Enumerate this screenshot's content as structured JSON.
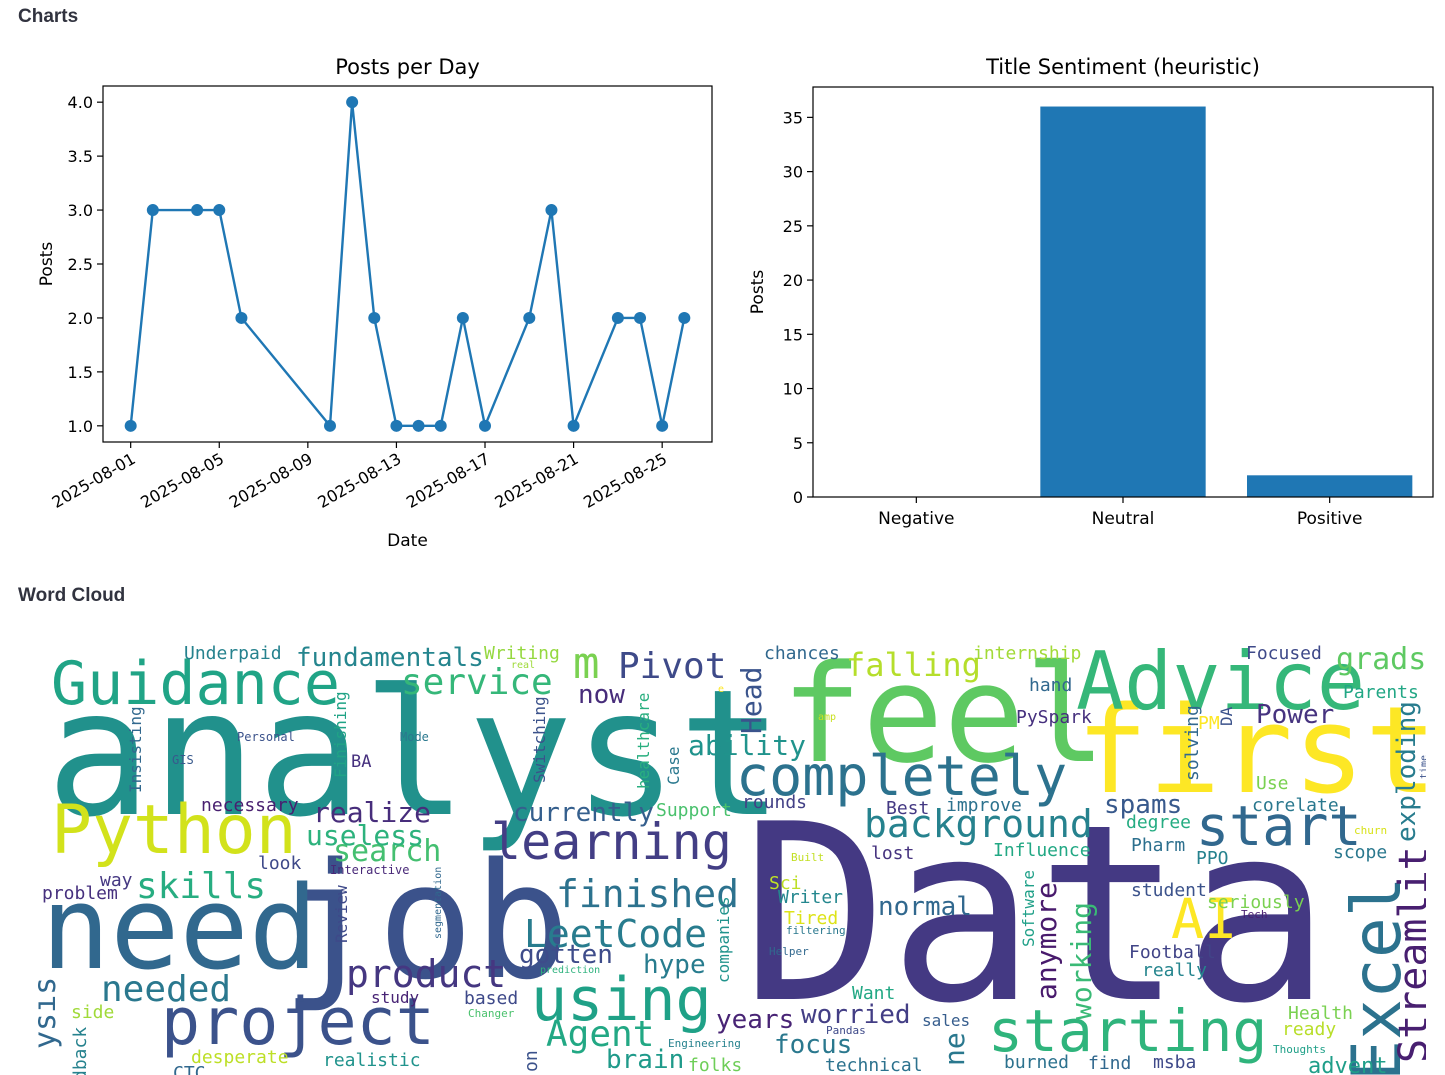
{
  "sections": {
    "charts_title": "Charts",
    "wordcloud_title": "Word Cloud"
  },
  "chart_data": [
    {
      "type": "line",
      "title": "Posts per Day",
      "xlabel": "Date",
      "ylabel": "Posts",
      "x": [
        "2025-08-01",
        "2025-08-02",
        "2025-08-04",
        "2025-08-05",
        "2025-08-06",
        "2025-08-10",
        "2025-08-11",
        "2025-08-12",
        "2025-08-13",
        "2025-08-14",
        "2025-08-15",
        "2025-08-16",
        "2025-08-17",
        "2025-08-19",
        "2025-08-20",
        "2025-08-21",
        "2025-08-23",
        "2025-08-24",
        "2025-08-25",
        "2025-08-26"
      ],
      "values": [
        1,
        3,
        3,
        3,
        2,
        1,
        4,
        2,
        1,
        1,
        1,
        2,
        1,
        2,
        3,
        1,
        2,
        2,
        1,
        2
      ],
      "xticks": [
        "2025-08-01",
        "2025-08-05",
        "2025-08-09",
        "2025-08-13",
        "2025-08-17",
        "2025-08-21",
        "2025-08-25"
      ],
      "yticks": [
        "1.0",
        "1.5",
        "2.0",
        "2.5",
        "3.0",
        "3.5",
        "4.0"
      ],
      "ylim": [
        0.85,
        4.15
      ],
      "color": "#1f77b4",
      "grid": false
    },
    {
      "type": "bar",
      "title": "Title Sentiment (heuristic)",
      "xlabel": "",
      "ylabel": "Posts",
      "categories": [
        "Negative",
        "Neutral",
        "Positive"
      ],
      "values": [
        0,
        36,
        2
      ],
      "yticks": [
        "0",
        "5",
        "10",
        "15",
        "20",
        "25",
        "30",
        "35"
      ],
      "ylim": [
        0,
        37.8
      ],
      "color": "#1f77b4",
      "grid": false
    }
  ],
  "wordcloud": {
    "words": [
      {
        "text": "Data",
        "color": "#443983"
      },
      {
        "text": "analyst",
        "color": "#21918c"
      },
      {
        "text": "job",
        "color": "#3b528b"
      },
      {
        "text": "feel",
        "color": "#5ec962"
      },
      {
        "text": "first",
        "color": "#fde725"
      },
      {
        "text": "need",
        "color": "#31688e"
      },
      {
        "text": "Advice",
        "color": "#35b779"
      },
      {
        "text": "Guidance",
        "color": "#20a486"
      },
      {
        "text": "Python",
        "color": "#d2e21b"
      },
      {
        "text": "completely",
        "color": "#2c728e"
      },
      {
        "text": "project",
        "color": "#3b528b"
      },
      {
        "text": "starting",
        "color": "#2fb47c"
      },
      {
        "text": "start",
        "color": "#31688e"
      },
      {
        "text": "learning",
        "color": "#433e85"
      },
      {
        "text": "using",
        "color": "#1fa187"
      },
      {
        "text": "finished",
        "color": "#2c728e"
      },
      {
        "text": "background",
        "color": "#26828e"
      },
      {
        "text": "Excel",
        "color": "#2c728e"
      },
      {
        "text": "AI",
        "color": "#fde725"
      },
      {
        "text": "skills",
        "color": "#27ad81"
      },
      {
        "text": "LeetCode",
        "color": "#287c8e"
      },
      {
        "text": "product",
        "color": "#453781"
      },
      {
        "text": "Streamlit",
        "color": "#481f70"
      },
      {
        "text": "service",
        "color": "#35b779"
      },
      {
        "text": "Pivot",
        "color": "#3e4a89"
      },
      {
        "text": "needed",
        "color": "#2a788e"
      },
      {
        "text": "Agent",
        "color": "#22a884"
      },
      {
        "text": "fundamentals",
        "color": "#25858e"
      },
      {
        "text": "realize",
        "color": "#472d7b"
      },
      {
        "text": "search",
        "color": "#44bf70"
      },
      {
        "text": "useless",
        "color": "#2db27d"
      },
      {
        "text": "falling",
        "color": "#b5de2b"
      },
      {
        "text": "grads",
        "color": "#5ec962"
      },
      {
        "text": "ability",
        "color": "#20938c"
      },
      {
        "text": "currently",
        "color": "#355f8d"
      },
      {
        "text": "Power",
        "color": "#46337f"
      },
      {
        "text": "spams",
        "color": "#38598c"
      },
      {
        "text": "hype",
        "color": "#287c8e"
      },
      {
        "text": "gotten",
        "color": "#3e4c8a"
      },
      {
        "text": "worried",
        "color": "#433e85"
      },
      {
        "text": "years",
        "color": "#482475"
      },
      {
        "text": "focus",
        "color": "#2a788e"
      },
      {
        "text": "brain",
        "color": "#1f9a8a"
      },
      {
        "text": "now",
        "color": "#472c7a"
      },
      {
        "text": "Head",
        "color": "#3a548c"
      },
      {
        "text": "m",
        "color": "#7ad151"
      },
      {
        "text": "normal",
        "color": "#31688e"
      },
      {
        "text": "working",
        "color": "#3aba76"
      },
      {
        "text": "anymore",
        "color": "#481a6c"
      },
      {
        "text": "exploding",
        "color": "#287c8e"
      },
      {
        "text": "Underpaid",
        "color": "#26828e"
      },
      {
        "text": "Writing",
        "color": "#95d840"
      },
      {
        "text": "chances",
        "color": "#31688e"
      },
      {
        "text": "internship",
        "color": "#a2da37"
      },
      {
        "text": "hand",
        "color": "#31688e"
      },
      {
        "text": "Focused",
        "color": "#3e4989"
      },
      {
        "text": "Parents",
        "color": "#22a785"
      },
      {
        "text": "PySpark",
        "color": "#46307e"
      },
      {
        "text": "PM",
        "color": "#fde725"
      },
      {
        "text": "DA",
        "color": "#3b528b"
      },
      {
        "text": "solving",
        "color": "#31688e"
      },
      {
        "text": "Use",
        "color": "#7ad151"
      },
      {
        "text": "corelate",
        "color": "#2a788e"
      },
      {
        "text": "rounds",
        "color": "#424086"
      },
      {
        "text": "Best",
        "color": "#443983"
      },
      {
        "text": "improve",
        "color": "#2c728e"
      },
      {
        "text": "degree",
        "color": "#25ac82"
      },
      {
        "text": "Pharm",
        "color": "#2d708e"
      },
      {
        "text": "PPO",
        "color": "#26828e"
      },
      {
        "text": "scope",
        "color": "#2a788e"
      },
      {
        "text": "lost",
        "color": "#46337f"
      },
      {
        "text": "Influence",
        "color": "#22a884"
      },
      {
        "text": "student",
        "color": "#3b528b"
      },
      {
        "text": "seriously",
        "color": "#7ad151"
      },
      {
        "text": "Football",
        "color": "#414487"
      },
      {
        "text": "really",
        "color": "#25858e"
      },
      {
        "text": "Writer",
        "color": "#24878e"
      },
      {
        "text": "Tired",
        "color": "#dde318"
      },
      {
        "text": "Sci",
        "color": "#bddf26"
      },
      {
        "text": "Support",
        "color": "#4ac16d"
      },
      {
        "text": "Want",
        "color": "#22a884"
      },
      {
        "text": "sales",
        "color": "#365d8d"
      },
      {
        "text": "Health",
        "color": "#7ad151"
      },
      {
        "text": "ready",
        "color": "#b8de29"
      },
      {
        "text": "advent",
        "color": "#1f9e89"
      },
      {
        "text": "msba",
        "color": "#3e4989"
      },
      {
        "text": "find",
        "color": "#31688e"
      },
      {
        "text": "burned",
        "color": "#2c728e"
      },
      {
        "text": "technical",
        "color": "#2c728e"
      },
      {
        "text": "folks",
        "color": "#6ece58"
      },
      {
        "text": "realistic",
        "color": "#20938c"
      },
      {
        "text": "desperate",
        "color": "#bddf26"
      },
      {
        "text": "based",
        "color": "#3e4989"
      },
      {
        "text": "study",
        "color": "#482475"
      },
      {
        "text": "side",
        "color": "#a0da39"
      },
      {
        "text": "problem",
        "color": "#46307e"
      },
      {
        "text": "way",
        "color": "#453882"
      },
      {
        "text": "look",
        "color": "#3e4989"
      },
      {
        "text": "necessary",
        "color": "#481f70"
      },
      {
        "text": "Insisting",
        "color": "#31688e"
      },
      {
        "text": "Finishing",
        "color": "#20a386"
      },
      {
        "text": "BA",
        "color": "#46307e"
      },
      {
        "text": "Switching",
        "color": "#3b528b"
      },
      {
        "text": "healthcare",
        "color": "#29af7f"
      },
      {
        "text": "Case",
        "color": "#2a788e"
      },
      {
        "text": "Review",
        "color": "#3e4989"
      },
      {
        "text": "companies",
        "color": "#20938c"
      },
      {
        "text": "Software",
        "color": "#1fa088"
      },
      {
        "text": "Personal",
        "color": "#3b528b"
      },
      {
        "text": "Mode",
        "color": "#2a788e"
      },
      {
        "text": "GIS",
        "color": "#38598c"
      },
      {
        "text": "Interactive",
        "color": "#482878"
      },
      {
        "text": "segmentation",
        "color": "#31688e"
      },
      {
        "text": "prediction",
        "color": "#2db27d"
      },
      {
        "text": "Changer",
        "color": "#4ac16d"
      },
      {
        "text": "Engineering",
        "color": "#26828e"
      },
      {
        "text": "Helper",
        "color": "#31688e"
      },
      {
        "text": "filtering",
        "color": "#2a788e"
      },
      {
        "text": "Built",
        "color": "#c2df23"
      },
      {
        "text": "Tech",
        "color": "#481f70"
      },
      {
        "text": "churn",
        "color": "#d8e219"
      },
      {
        "text": "time",
        "color": "#3b528b"
      },
      {
        "text": "amp",
        "color": "#c8e020"
      },
      {
        "text": "real",
        "color": "#9fda3a"
      },
      {
        "text": "e",
        "color": "#fde725"
      },
      {
        "text": "Thoughts",
        "color": "#1fa088"
      },
      {
        "text": "Pandas",
        "color": "#3e4989"
      },
      {
        "text": "CTC",
        "color": "#31688e"
      },
      {
        "text": "ysis",
        "color": "#31688e"
      },
      {
        "text": "dback",
        "color": "#26828e"
      },
      {
        "text": "ne",
        "color": "#2a788e"
      },
      {
        "text": "on",
        "color": "#3b528b"
      }
    ]
  }
}
